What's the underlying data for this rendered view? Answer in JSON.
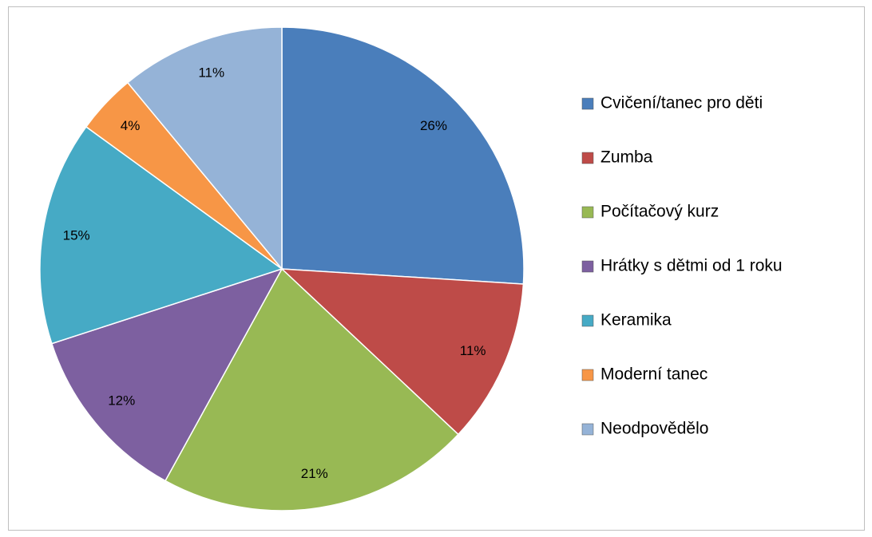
{
  "chart_data": {
    "type": "pie",
    "categories": [
      "Cvičení/tanec pro děti",
      "Zumba",
      "Počítačový kurz",
      "Hrátky s dětmi od 1 roku",
      "Keramika",
      "Moderní tanec",
      "Neodpovědělo"
    ],
    "values": [
      26,
      11,
      21,
      12,
      15,
      4,
      11
    ],
    "value_labels": [
      "26%",
      "11%",
      "21%",
      "12%",
      "15%",
      "4%",
      "11%"
    ],
    "colors": [
      "#4a7ebb",
      "#be4b48",
      "#98b954",
      "#7d60a0",
      "#46aac5",
      "#f79646",
      "#95b3d7"
    ],
    "legend": "right"
  }
}
